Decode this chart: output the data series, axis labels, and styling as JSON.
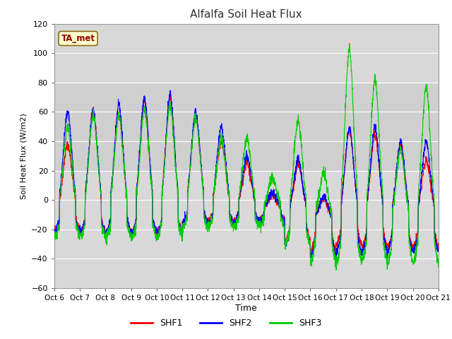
{
  "title": "Alfalfa Soil Heat Flux",
  "xlabel": "Time",
  "ylabel": "Soil Heat Flux (W/m2)",
  "ylim": [
    -60,
    120
  ],
  "xlim": [
    0,
    360
  ],
  "yticks": [
    -60,
    -40,
    -20,
    0,
    20,
    40,
    60,
    80,
    100,
    120
  ],
  "xtick_labels": [
    "Oct 6",
    "Oct 7",
    "Oct 8",
    "Oct 9",
    "Oct 10",
    "Oct 11",
    "Oct 12",
    "Oct 13",
    "Oct 14",
    "Oct 15",
    "Oct 16",
    "Oct 17",
    "Oct 18",
    "Oct 19",
    "Oct 20",
    "Oct 21"
  ],
  "xtick_positions": [
    0,
    24,
    48,
    72,
    96,
    120,
    144,
    168,
    192,
    216,
    240,
    264,
    288,
    312,
    336,
    360
  ],
  "line_colors": {
    "SHF1": "#ff0000",
    "SHF2": "#0000ff",
    "SHF3": "#00cc00"
  },
  "line_width": 0.8,
  "annotation_text": "TA_met",
  "annotation_color": "#8b0000",
  "annotation_bg": "#ffffcc",
  "bg_color": "#d8d8d8",
  "n_points": 2161,
  "shf1_day_peaks": [
    38,
    60,
    58,
    68,
    70,
    58,
    40,
    25,
    3,
    25,
    2,
    48,
    45,
    38,
    28,
    0
  ],
  "shf2_day_peaks": [
    60,
    62,
    65,
    70,
    72,
    60,
    50,
    30,
    5,
    28,
    3,
    50,
    50,
    40,
    40,
    0
  ],
  "shf3_day_peaks": [
    50,
    58,
    58,
    62,
    65,
    56,
    42,
    43,
    15,
    55,
    20,
    103,
    83,
    35,
    78,
    0
  ],
  "shf1_night": [
    -20,
    -22,
    -22,
    -22,
    -22,
    -15,
    -15,
    -15,
    -15,
    -28,
    -35,
    -30,
    -32,
    -32,
    -32,
    -32
  ],
  "shf2_night": [
    -22,
    -22,
    -22,
    -22,
    -22,
    -15,
    -15,
    -15,
    -15,
    -30,
    -38,
    -35,
    -35,
    -35,
    -35,
    -35
  ],
  "shf3_night": [
    -25,
    -25,
    -25,
    -25,
    -25,
    -18,
    -18,
    -18,
    -18,
    -30,
    -42,
    -42,
    -42,
    -42,
    -42,
    -42
  ]
}
